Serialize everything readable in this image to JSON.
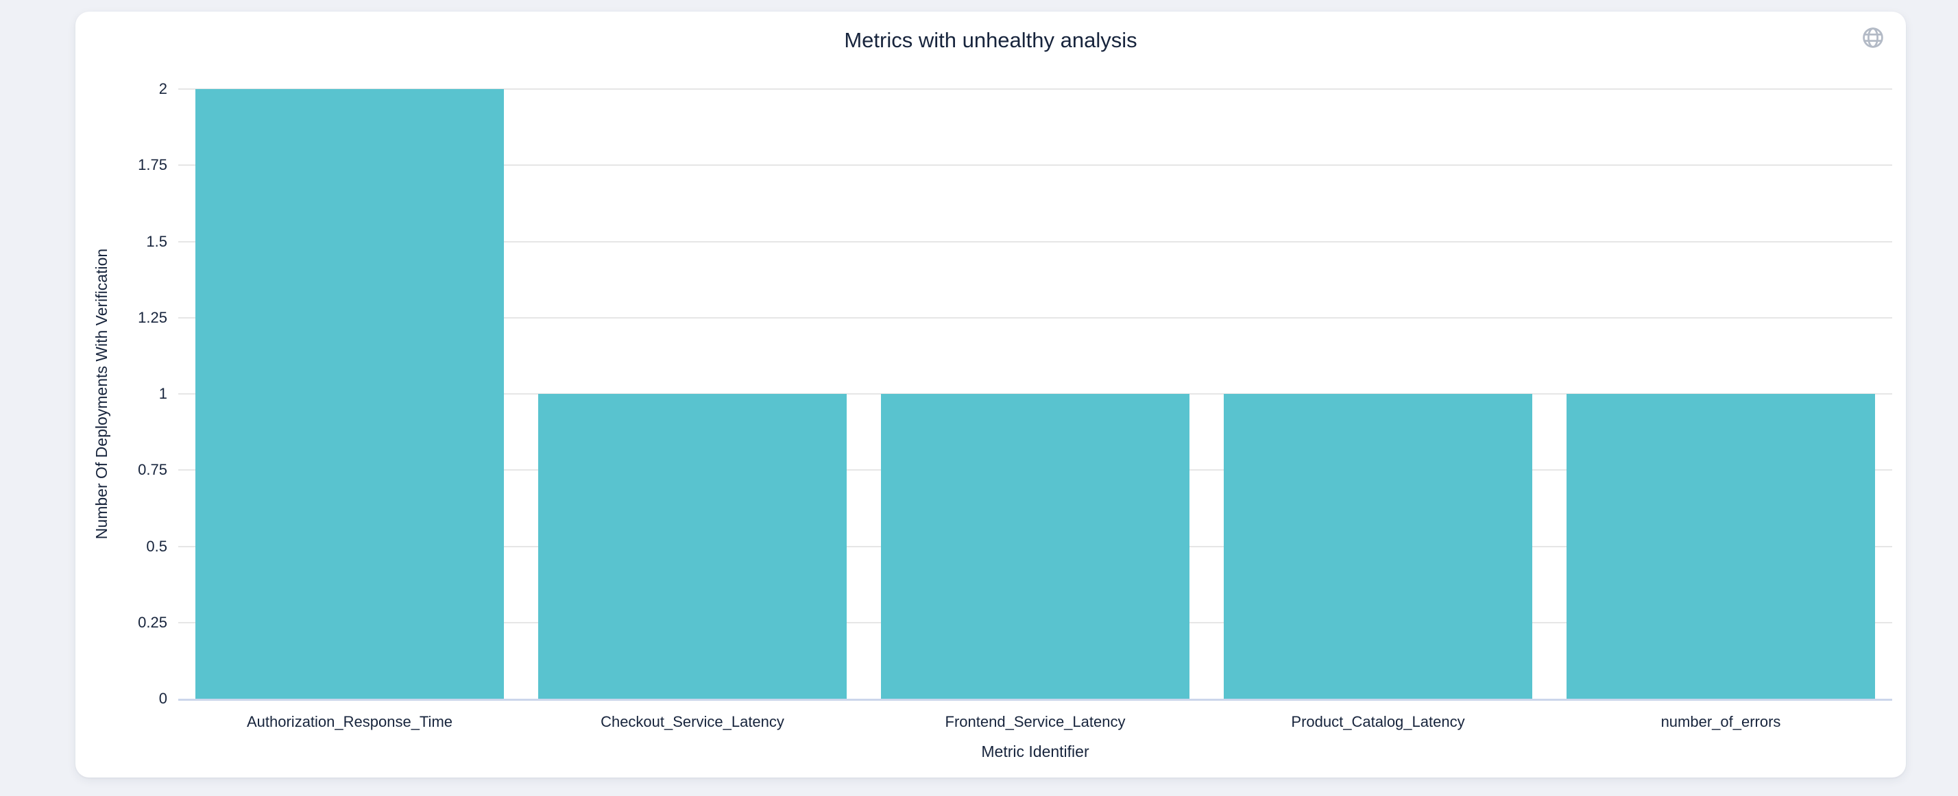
{
  "page": {
    "background": "#eff1f6"
  },
  "card": {
    "background": "#ffffff"
  },
  "header": {
    "globe_icon": "globe-icon",
    "icon_color": "#b3bac6"
  },
  "chart_data": {
    "type": "bar",
    "title": "Metrics with unhealthy analysis",
    "xlabel": "Metric Identifier",
    "ylabel": "Number Of Deployments With Verification",
    "categories": [
      "Authorization_Response_Time",
      "Checkout_Service_Latency",
      "Frontend_Service_Latency",
      "Product_Catalog_Latency",
      "number_of_errors"
    ],
    "values": [
      2,
      1,
      1,
      1,
      1
    ],
    "yticks": [
      0,
      0.25,
      0.5,
      0.75,
      1,
      1.25,
      1.5,
      1.75,
      2
    ],
    "ylim": [
      0,
      2
    ],
    "grid": true,
    "legend_position": "none",
    "colors": {
      "bar": "#59c3cf",
      "gridline": "#e6e6e6",
      "axis_line": "#ccd6eb",
      "text": "#17243c",
      "icon": "#b3bac6"
    }
  }
}
